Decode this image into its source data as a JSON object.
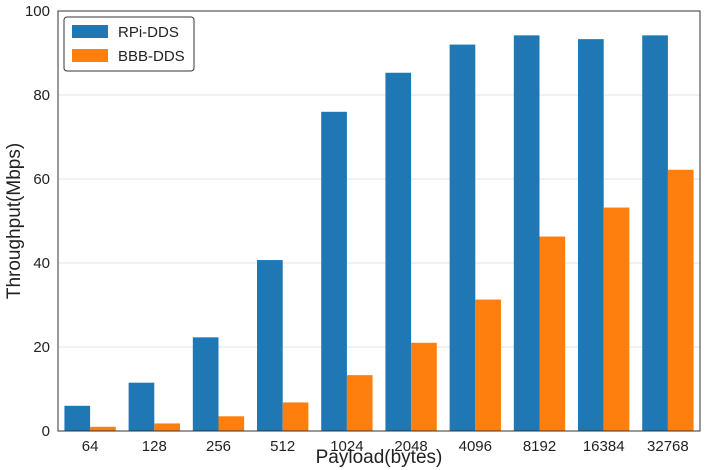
{
  "chart_data": {
    "type": "bar",
    "title": "",
    "xlabel": "Payload(bytes)",
    "ylabel": "Throughput(Mbps)",
    "categories": [
      "64",
      "128",
      "256",
      "512",
      "1024",
      "2048",
      "4096",
      "8192",
      "16384",
      "32768"
    ],
    "series": [
      {
        "name": "RPi-DDS",
        "color": "#1f77b4",
        "values": [
          6,
          11.5,
          22.3,
          40.7,
          76,
          85.3,
          92,
          94.2,
          93.3,
          94.2
        ]
      },
      {
        "name": "BBB-DDS",
        "color": "#ff7f0e",
        "values": [
          1,
          1.8,
          3.5,
          6.8,
          13.3,
          21,
          31.3,
          46.3,
          53.2,
          62.2
        ]
      }
    ],
    "ylim": [
      0,
      100
    ],
    "yticks": [
      0,
      20,
      40,
      60,
      80,
      100
    ],
    "grid": true,
    "legend_position": "top-left"
  }
}
